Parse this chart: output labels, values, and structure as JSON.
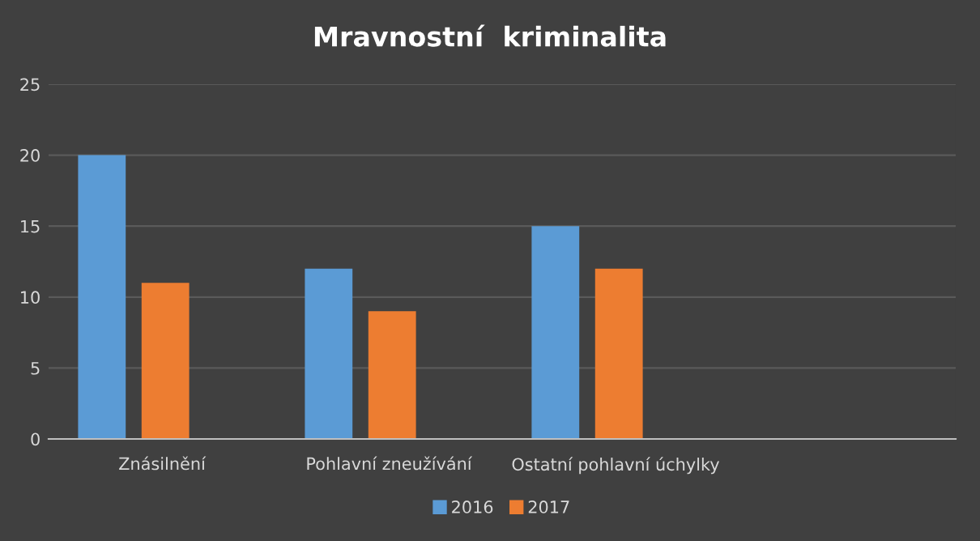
{
  "chart_data": {
    "type": "bar",
    "title": "Mravnostní  kriminalita",
    "categories": [
      "Znásilnění",
      "Pohlavní zneužívání",
      "Ostatní pohlavní úchylky",
      null
    ],
    "series": [
      {
        "name": "2016",
        "color": "#5b9bd5",
        "values": [
          20,
          12,
          15,
          null
        ]
      },
      {
        "name": "2017",
        "color": "#ed7d31",
        "values": [
          11,
          9,
          12,
          null
        ]
      }
    ],
    "ylim": [
      0,
      25
    ],
    "yticks": [
      0,
      5,
      10,
      15,
      20,
      25
    ],
    "grid": "y",
    "legend": "bottom"
  }
}
